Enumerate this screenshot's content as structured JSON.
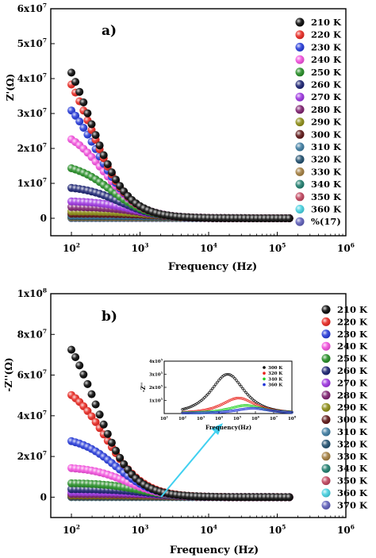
{
  "chart_data": [
    {
      "type": "scatter",
      "panel_label": "a)",
      "xlabel": "Frequency (Hz)",
      "ylabel": "Z'(Ω)",
      "xscale": "log",
      "xlim": [
        50,
        1000000
      ],
      "ylim": [
        -5000000,
        60000000
      ],
      "x_ticks": [
        {
          "value": 100,
          "base": "10",
          "exp": "2"
        },
        {
          "value": 1000,
          "base": "10",
          "exp": "3"
        },
        {
          "value": 10000,
          "base": "10",
          "exp": "4"
        },
        {
          "value": 100000,
          "base": "10",
          "exp": "5"
        },
        {
          "value": 1000000,
          "base": "10",
          "exp": "6"
        }
      ],
      "y_ticks": [
        {
          "value": 0,
          "base": "0",
          "exp": ""
        },
        {
          "value": 10000000,
          "base": "1x10",
          "exp": "7"
        },
        {
          "value": 20000000,
          "base": "2x10",
          "exp": "7"
        },
        {
          "value": 30000000,
          "base": "3x10",
          "exp": "7"
        },
        {
          "value": 40000000,
          "base": "4x10",
          "exp": "7"
        },
        {
          "value": 50000000,
          "base": "5x10",
          "exp": "7"
        },
        {
          "value": 60000000,
          "base": "6x10",
          "exp": "7"
        }
      ],
      "legend_position": "right",
      "series": [
        {
          "name": "210 K",
          "color": "#000000",
          "p0": 58000000,
          "fc": 180
        },
        {
          "name": "220 K",
          "color": "#e8231c",
          "p0": 52000000,
          "fc": 190
        },
        {
          "name": "230 K",
          "color": "#2035d8",
          "p0": 39000000,
          "fc": 230
        },
        {
          "name": "240 K",
          "color": "#f24bdc",
          "p0": 26500000,
          "fc": 300
        },
        {
          "name": "250 K",
          "color": "#1f8a1f",
          "p0": 16000000,
          "fc": 380
        },
        {
          "name": "260 K",
          "color": "#141c6e",
          "p0": 9300000,
          "fc": 520
        },
        {
          "name": "270 K",
          "color": "#9b30e0",
          "p0": 5000000,
          "fc": 800
        },
        {
          "name": "280 K",
          "color": "#7a1a6a",
          "p0": 3300000,
          "fc": 1100
        },
        {
          "name": "290 K",
          "color": "#8a8a10",
          "p0": 2000000,
          "fc": 1600
        },
        {
          "name": "300 K",
          "color": "#5a1010",
          "p0": 1300000,
          "fc": 2200
        },
        {
          "name": "310 K",
          "color": "#3a7aa0",
          "p0": 900000,
          "fc": 3000
        },
        {
          "name": "320 K",
          "color": "#1a4a6a",
          "p0": 600000,
          "fc": 4000
        },
        {
          "name": "330 K",
          "color": "#a07a3a",
          "p0": 400000,
          "fc": 5000
        },
        {
          "name": "340 K",
          "color": "#1a7a6a",
          "p0": 250000,
          "fc": 7000
        },
        {
          "name": "350 K",
          "color": "#c0405a",
          "p0": 150000,
          "fc": 9000
        },
        {
          "name": "360 K",
          "color": "#40d0e0",
          "p0": 100000,
          "fc": 12000
        },
        {
          "name": "%(17)",
          "color": "#5a5ab8",
          "p0": 50000,
          "fc": 20000
        }
      ]
    },
    {
      "type": "scatter",
      "panel_label": "b)",
      "xlabel": "Frequency (Hz)",
      "ylabel": "-Z''(Ω)",
      "xscale": "log",
      "xlim": [
        50,
        1000000
      ],
      "ylim": [
        -10000000,
        100000000
      ],
      "x_ticks": [
        {
          "value": 100,
          "base": "10",
          "exp": "2"
        },
        {
          "value": 1000,
          "base": "10",
          "exp": "3"
        },
        {
          "value": 10000,
          "base": "10",
          "exp": "4"
        },
        {
          "value": 100000,
          "base": "10",
          "exp": "5"
        },
        {
          "value": 1000000,
          "base": "10",
          "exp": "6"
        }
      ],
      "y_ticks": [
        {
          "value": 0,
          "base": "0",
          "exp": ""
        },
        {
          "value": 20000000,
          "base": "2x10",
          "exp": "7"
        },
        {
          "value": 40000000,
          "base": "4x10",
          "exp": "7"
        },
        {
          "value": 60000000,
          "base": "6x10",
          "exp": "7"
        },
        {
          "value": 80000000,
          "base": "8x10",
          "exp": "7"
        },
        {
          "value": 100000000,
          "base": "1x10",
          "exp": "8"
        }
      ],
      "legend_position": "right",
      "series": [
        {
          "name": "210 K",
          "color": "#000000",
          "p0": 93000000,
          "fc": 220
        },
        {
          "name": "220 K",
          "color": "#e8231c",
          "p0": 58000000,
          "fc": 320
        },
        {
          "name": "230 K",
          "color": "#2035d8",
          "p0": 30000000,
          "fc": 450
        },
        {
          "name": "240 K",
          "color": "#f24bdc",
          "p0": 15000000,
          "fc": 650
        },
        {
          "name": "250 K",
          "color": "#1f8a1f",
          "p0": 7000000,
          "fc": 1000
        },
        {
          "name": "260 K",
          "color": "#141c6e",
          "p0": 4000000,
          "fc": 1400
        },
        {
          "name": "270 K",
          "color": "#9b30e0",
          "p0": 2500000,
          "fc": 2000
        },
        {
          "name": "280 K",
          "color": "#7a1a6a",
          "p0": 1500000,
          "fc": 2800
        },
        {
          "name": "290 K",
          "color": "#8a8a10",
          "p0": 1000000,
          "fc": 3600
        },
        {
          "name": "300 K",
          "color": "#5a1010",
          "p0": 700000,
          "fc": 4500
        },
        {
          "name": "310 K",
          "color": "#3a7aa0",
          "p0": 500000,
          "fc": 6000
        },
        {
          "name": "320 K",
          "color": "#1a4a6a",
          "p0": 350000,
          "fc": 8000
        },
        {
          "name": "330 K",
          "color": "#a07a3a",
          "p0": 250000,
          "fc": 10000
        },
        {
          "name": "340 K",
          "color": "#1a7a6a",
          "p0": 150000,
          "fc": 13000
        },
        {
          "name": "350 K",
          "color": "#c0405a",
          "p0": 100000,
          "fc": 17000
        },
        {
          "name": "360 K",
          "color": "#40d0e0",
          "p0": 60000,
          "fc": 22000
        },
        {
          "name": "370 K",
          "color": "#5a5ab8",
          "p0": 30000,
          "fc": 30000
        }
      ],
      "inset": {
        "xlabel": "Frequency(Hz)",
        "ylabel": "-Z''",
        "xscale": "log",
        "xlim": [
          10,
          100000000
        ],
        "ylim": [
          0,
          400000
        ],
        "x_ticks": [
          {
            "value": 10,
            "base": "10",
            "exp": "1"
          },
          {
            "value": 100,
            "base": "10",
            "exp": "2"
          },
          {
            "value": 1000,
            "base": "10",
            "exp": "3"
          },
          {
            "value": 10000,
            "base": "10",
            "exp": "4"
          },
          {
            "value": 100000,
            "base": "10",
            "exp": "5"
          },
          {
            "value": 1000000,
            "base": "10",
            "exp": "6"
          },
          {
            "value": 10000000,
            "base": "10",
            "exp": "7"
          },
          {
            "value": 100000000,
            "base": "10",
            "exp": "8"
          }
        ],
        "y_ticks": [
          {
            "value": 100000,
            "base": "1x10",
            "exp": "5"
          },
          {
            "value": 200000,
            "base": "2x10",
            "exp": "5"
          },
          {
            "value": 300000,
            "base": "3x10",
            "exp": "5"
          },
          {
            "value": 400000,
            "base": "4x10",
            "exp": "5"
          }
        ],
        "series": [
          {
            "name": "300 K",
            "color": "#000000",
            "peak": 300000,
            "fpeak": 30000,
            "base": 5000,
            "x_start": 100
          },
          {
            "name": "320 K",
            "color": "#e8231c",
            "peak": 118000,
            "fpeak": 120000,
            "base": 5000,
            "x_start": 100
          },
          {
            "name": "340 K",
            "color": "#22d022",
            "peak": 62000,
            "fpeak": 300000,
            "base": 5000,
            "x_start": 100
          },
          {
            "name": "360 K",
            "color": "#2035d8",
            "peak": 40000,
            "fpeak": 700000,
            "base": 3000,
            "x_start": 100
          }
        ]
      }
    }
  ]
}
